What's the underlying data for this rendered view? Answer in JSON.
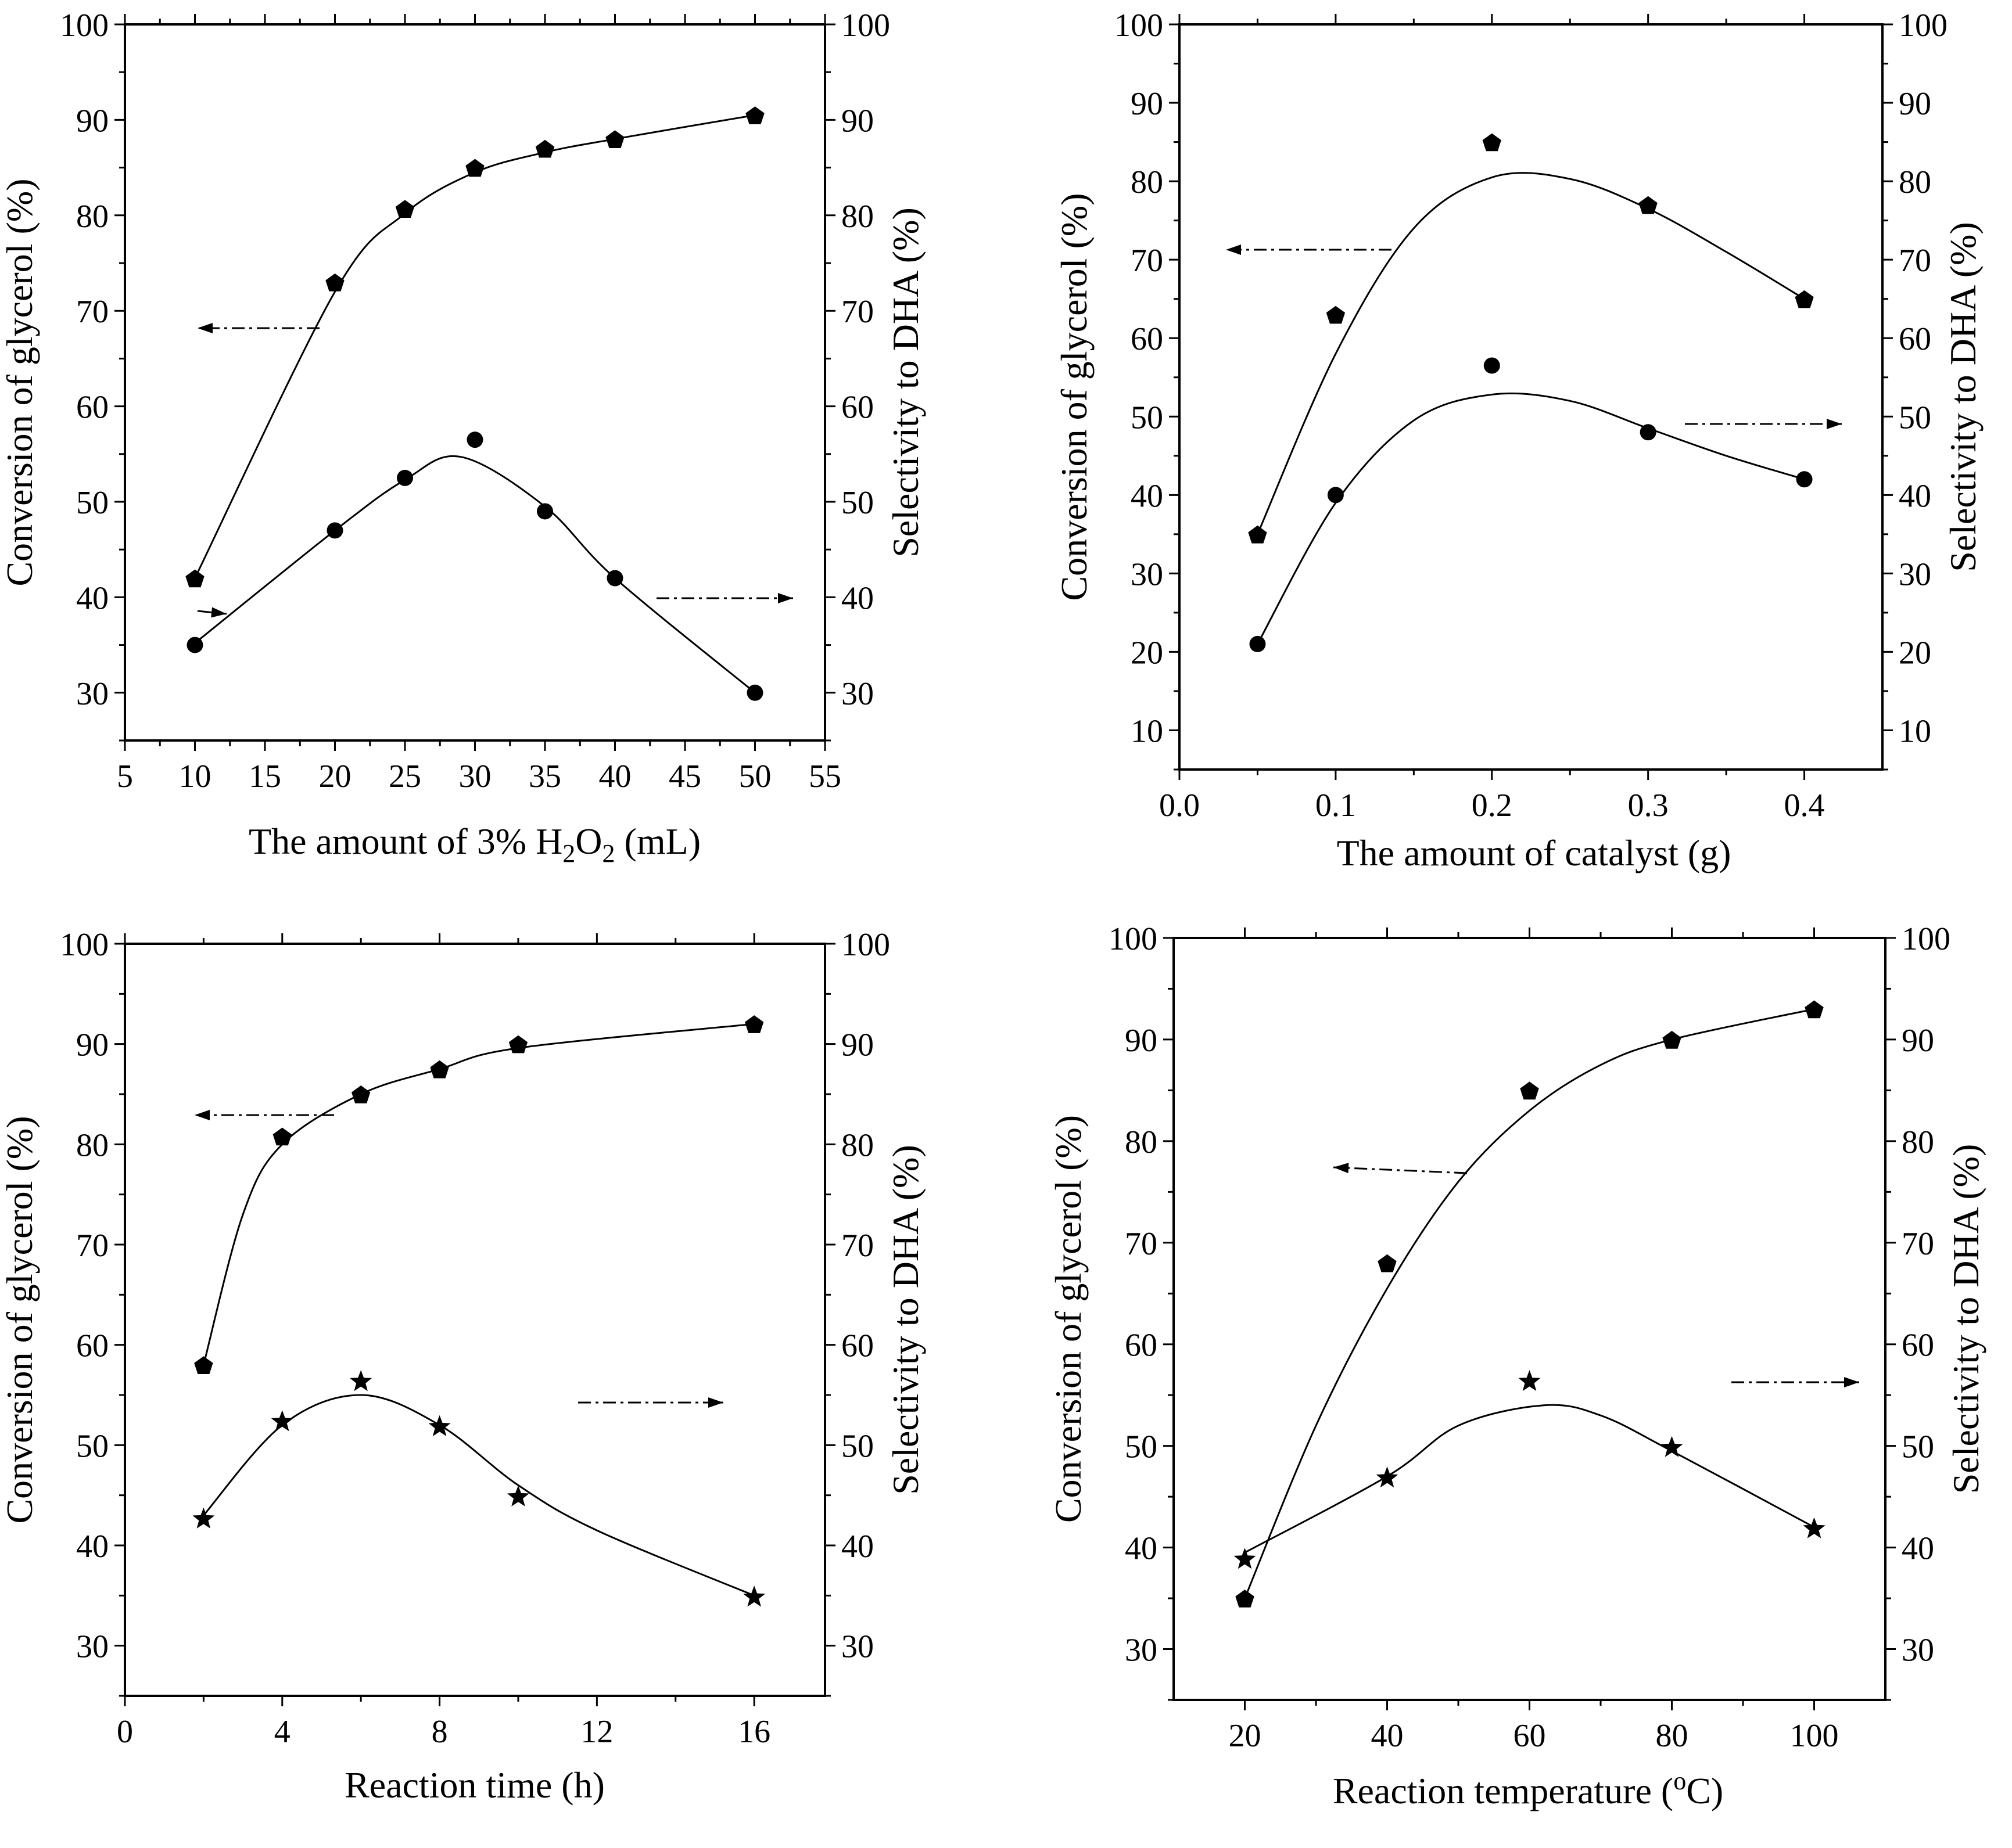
{
  "chart_data": [
    {
      "type": "scatter",
      "panel": "top-left",
      "xlabel_main": "The amount of 3% H",
      "xlabel_sub1": "2",
      "xlabel_mid": "O",
      "xlabel_sub2": "2",
      "xlabel_tail": " (mL)",
      "ylabel_left": "Conversion of glycerol (%)",
      "ylabel_right": "Selectivity to DHA (%)",
      "xlim": [
        5,
        55
      ],
      "ylim": [
        25,
        100
      ],
      "xticks": [
        "5",
        "10",
        "15",
        "20",
        "25",
        "30",
        "35",
        "40",
        "45",
        "50",
        "55"
      ],
      "yticks_left": [
        "30",
        "40",
        "50",
        "60",
        "70",
        "80",
        "90",
        "100"
      ],
      "yticks_right": [
        "30",
        "40",
        "50",
        "60",
        "70",
        "80",
        "90",
        "100"
      ],
      "series": [
        {
          "name": "Conversion of glycerol",
          "axis": "left",
          "marker": "pentagon",
          "x": [
            10,
            20,
            25,
            30,
            35,
            40,
            50
          ],
          "values": [
            42,
            73,
            80.7,
            85,
            87,
            88,
            90.5
          ]
        },
        {
          "name": "Selectivity to DHA",
          "axis": "right",
          "marker": "circle",
          "x": [
            10,
            20,
            25,
            30,
            35,
            40,
            50
          ],
          "values": [
            35,
            47,
            52.5,
            56.5,
            49,
            42,
            30
          ]
        }
      ]
    },
    {
      "type": "scatter",
      "panel": "top-right",
      "xlabel_main": "The amount of catalyst (g)",
      "ylabel_left": "Conversion of glycerol (%)",
      "ylabel_right": "Selectivity to DHA (%)",
      "xlim": [
        0.0,
        0.45
      ],
      "ylim": [
        5,
        100
      ],
      "xticks": [
        "0.0",
        "0.1",
        "0.2",
        "0.3",
        "0.4"
      ],
      "yticks_left": [
        "10",
        "20",
        "30",
        "40",
        "50",
        "60",
        "70",
        "80",
        "90",
        "100"
      ],
      "yticks_right": [
        "10",
        "20",
        "30",
        "40",
        "50",
        "60",
        "70",
        "80",
        "90",
        "100"
      ],
      "series": [
        {
          "name": "Conversion of glycerol",
          "axis": "left",
          "marker": "pentagon",
          "x": [
            0.05,
            0.1,
            0.2,
            0.3,
            0.4
          ],
          "values": [
            35,
            63,
            85,
            77,
            65
          ]
        },
        {
          "name": "Selectivity to DHA",
          "axis": "right",
          "marker": "circle",
          "x": [
            0.05,
            0.1,
            0.2,
            0.3,
            0.4
          ],
          "values": [
            21,
            40,
            56.5,
            48,
            42
          ]
        }
      ]
    },
    {
      "type": "scatter",
      "panel": "bottom-left",
      "xlabel_main": "Reaction time (h)",
      "ylabel_left": "Conversion of glycerol (%)",
      "ylabel_right": "Selectivity to DHA (%)",
      "xlim": [
        0,
        17.8
      ],
      "ylim": [
        25,
        100
      ],
      "xticks": [
        "0",
        "4",
        "8",
        "12",
        "16"
      ],
      "yticks_left": [
        "30",
        "40",
        "50",
        "60",
        "70",
        "80",
        "90",
        "100"
      ],
      "yticks_right": [
        "30",
        "40",
        "50",
        "60",
        "70",
        "80",
        "90",
        "100"
      ],
      "series": [
        {
          "name": "Conversion of glycerol",
          "axis": "left",
          "marker": "pentagon",
          "x": [
            2,
            4,
            6,
            8,
            10,
            16
          ],
          "values": [
            58,
            80.8,
            85,
            87.5,
            90,
            92
          ]
        },
        {
          "name": "Selectivity to DHA",
          "axis": "right",
          "marker": "star",
          "x": [
            2,
            4,
            6,
            8,
            10,
            16
          ],
          "values": [
            42.8,
            52.5,
            56.5,
            52,
            45,
            35
          ]
        }
      ]
    },
    {
      "type": "scatter",
      "panel": "bottom-right",
      "xlabel_main": "Reaction temperature (",
      "xlabel_sup": "o",
      "xlabel_tail": "C)",
      "ylabel_left": "Conversion of glycerol (%)",
      "ylabel_right": "Selectivity to DHA (%)",
      "xlim": [
        10,
        110
      ],
      "ylim": [
        25,
        100
      ],
      "xticks": [
        "20",
        "40",
        "60",
        "80",
        "100"
      ],
      "yticks_left": [
        "30",
        "40",
        "50",
        "60",
        "70",
        "80",
        "90",
        "100"
      ],
      "yticks_right": [
        "30",
        "40",
        "50",
        "60",
        "70",
        "80",
        "90",
        "100"
      ],
      "series": [
        {
          "name": "Conversion of glycerol",
          "axis": "left",
          "marker": "pentagon",
          "x": [
            20,
            40,
            60,
            80,
            100
          ],
          "values": [
            35,
            68,
            85,
            90,
            93
          ]
        },
        {
          "name": "Selectivity to DHA",
          "axis": "right",
          "marker": "star",
          "x": [
            20,
            40,
            60,
            80,
            100
          ],
          "values": [
            39,
            47,
            56.5,
            50,
            42
          ]
        }
      ]
    }
  ]
}
